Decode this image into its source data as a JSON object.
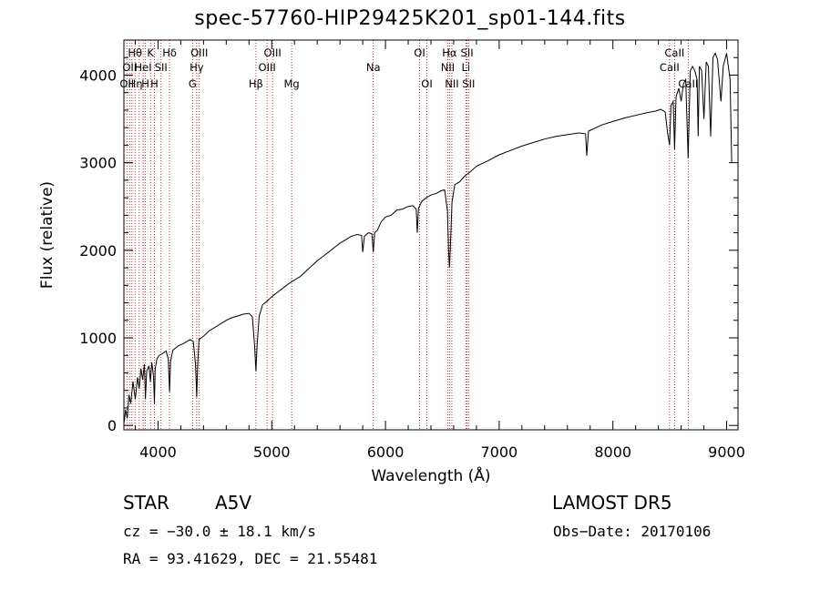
{
  "chart_data": {
    "type": "line",
    "title": "spec-57760-HIP29425K201_sp01-144.fits",
    "xlabel": "Wavelength (Å)",
    "ylabel": "Flux (relative)",
    "xlim": [
      3700,
      9100
    ],
    "ylim": [
      -50,
      4400
    ],
    "x_ticks": [
      4000,
      5000,
      6000,
      7000,
      8000,
      9000
    ],
    "y_ticks": [
      0,
      1000,
      2000,
      3000,
      4000
    ],
    "grid": false,
    "series": [
      {
        "points": [
          [
            3700,
            20
          ],
          [
            3715,
            180
          ],
          [
            3730,
            80
          ],
          [
            3745,
            350
          ],
          [
            3760,
            250
          ],
          [
            3780,
            500
          ],
          [
            3800,
            300
          ],
          [
            3820,
            550
          ],
          [
            3835,
            420
          ],
          [
            3850,
            650
          ],
          [
            3865,
            520
          ],
          [
            3880,
            700
          ],
          [
            3889,
            300
          ],
          [
            3900,
            620
          ],
          [
            3920,
            680
          ],
          [
            3933,
            500
          ],
          [
            3945,
            720
          ],
          [
            3960,
            560
          ],
          [
            3968,
            250
          ],
          [
            3975,
            640
          ],
          [
            3990,
            760
          ],
          [
            4010,
            800
          ],
          [
            4040,
            820
          ],
          [
            4070,
            850
          ],
          [
            4090,
            760
          ],
          [
            4101,
            380
          ],
          [
            4110,
            730
          ],
          [
            4130,
            860
          ],
          [
            4180,
            910
          ],
          [
            4230,
            940
          ],
          [
            4280,
            980
          ],
          [
            4310,
            960
          ],
          [
            4330,
            700
          ],
          [
            4340,
            320
          ],
          [
            4348,
            680
          ],
          [
            4360,
            980
          ],
          [
            4400,
            1020
          ],
          [
            4450,
            1080
          ],
          [
            4500,
            1120
          ],
          [
            4550,
            1160
          ],
          [
            4600,
            1200
          ],
          [
            4650,
            1230
          ],
          [
            4700,
            1250
          ],
          [
            4750,
            1270
          ],
          [
            4800,
            1280
          ],
          [
            4830,
            1240
          ],
          [
            4850,
            900
          ],
          [
            4861,
            620
          ],
          [
            4872,
            940
          ],
          [
            4890,
            1250
          ],
          [
            4920,
            1380
          ],
          [
            4960,
            1420
          ],
          [
            5000,
            1470
          ],
          [
            5050,
            1520
          ],
          [
            5100,
            1570
          ],
          [
            5150,
            1620
          ],
          [
            5200,
            1660
          ],
          [
            5250,
            1700
          ],
          [
            5300,
            1760
          ],
          [
            5350,
            1820
          ],
          [
            5400,
            1880
          ],
          [
            5450,
            1930
          ],
          [
            5500,
            1980
          ],
          [
            5550,
            2030
          ],
          [
            5600,
            2080
          ],
          [
            5650,
            2120
          ],
          [
            5700,
            2160
          ],
          [
            5750,
            2180
          ],
          [
            5790,
            2170
          ],
          [
            5800,
            1980
          ],
          [
            5815,
            2160
          ],
          [
            5850,
            2200
          ],
          [
            5880,
            2190
          ],
          [
            5893,
            1980
          ],
          [
            5905,
            2200
          ],
          [
            5930,
            2230
          ],
          [
            5960,
            2320
          ],
          [
            6000,
            2380
          ],
          [
            6050,
            2400
          ],
          [
            6100,
            2460
          ],
          [
            6150,
            2470
          ],
          [
            6200,
            2500
          ],
          [
            6240,
            2510
          ],
          [
            6270,
            2470
          ],
          [
            6280,
            2200
          ],
          [
            6290,
            2480
          ],
          [
            6320,
            2560
          ],
          [
            6360,
            2600
          ],
          [
            6400,
            2630
          ],
          [
            6450,
            2650
          ],
          [
            6490,
            2680
          ],
          [
            6520,
            2690
          ],
          [
            6545,
            2450
          ],
          [
            6556,
            1950
          ],
          [
            6563,
            1800
          ],
          [
            6570,
            2000
          ],
          [
            6585,
            2550
          ],
          [
            6610,
            2750
          ],
          [
            6650,
            2780
          ],
          [
            6700,
            2850
          ],
          [
            6750,
            2900
          ],
          [
            6800,
            2960
          ],
          [
            6900,
            3020
          ],
          [
            7000,
            3090
          ],
          [
            7100,
            3140
          ],
          [
            7200,
            3190
          ],
          [
            7300,
            3230
          ],
          [
            7400,
            3270
          ],
          [
            7500,
            3300
          ],
          [
            7600,
            3320
          ],
          [
            7700,
            3340
          ],
          [
            7760,
            3330
          ],
          [
            7770,
            3080
          ],
          [
            7785,
            3360
          ],
          [
            7850,
            3400
          ],
          [
            7900,
            3430
          ],
          [
            8000,
            3470
          ],
          [
            8100,
            3510
          ],
          [
            8200,
            3540
          ],
          [
            8300,
            3570
          ],
          [
            8380,
            3590
          ],
          [
            8420,
            3610
          ],
          [
            8460,
            3580
          ],
          [
            8480,
            3350
          ],
          [
            8498,
            3200
          ],
          [
            8510,
            3650
          ],
          [
            8530,
            3700
          ],
          [
            8542,
            3150
          ],
          [
            8555,
            3750
          ],
          [
            8580,
            3850
          ],
          [
            8600,
            3700
          ],
          [
            8620,
            3900
          ],
          [
            8640,
            3950
          ],
          [
            8662,
            3050
          ],
          [
            8680,
            4050
          ],
          [
            8700,
            4100
          ],
          [
            8720,
            4050
          ],
          [
            8740,
            3950
          ],
          [
            8750,
            3300
          ],
          [
            8760,
            4100
          ],
          [
            8780,
            4050
          ],
          [
            8800,
            3500
          ],
          [
            8820,
            4150
          ],
          [
            8840,
            4100
          ],
          [
            8860,
            3300
          ],
          [
            8880,
            4200
          ],
          [
            8900,
            4250
          ],
          [
            8920,
            4180
          ],
          [
            8950,
            3700
          ],
          [
            8970,
            4100
          ],
          [
            9000,
            4250
          ],
          [
            9030,
            3950
          ],
          [
            9045,
            3000
          ]
        ]
      }
    ],
    "lines": [
      {
        "wl": 3726,
        "label": "OII",
        "row": 3
      },
      {
        "wl": 3750,
        "label": "OII",
        "row": 2
      },
      {
        "wl": 3771,
        "label": "H",
        "row": 3
      },
      {
        "wl": 3798,
        "label": "Hθ",
        "row": 1
      },
      {
        "wl": 3835,
        "label": "η",
        "row": 3
      },
      {
        "wl": 3869,
        "label": "HeI",
        "row": 2
      },
      {
        "wl": 3889,
        "label": "H",
        "row": 3
      },
      {
        "wl": 3934,
        "label": "K",
        "row": 1
      },
      {
        "wl": 3968,
        "label": "H",
        "row": 3
      },
      {
        "wl": 4026,
        "label": "SII",
        "row": 2
      },
      {
        "wl": 4101,
        "label": "Hδ",
        "row": 1
      },
      {
        "wl": 4304,
        "label": "G",
        "row": 3
      },
      {
        "wl": 4340,
        "label": "Hγ",
        "row": 2
      },
      {
        "wl": 4363,
        "label": "OIII",
        "row": 1
      },
      {
        "wl": 4861,
        "label": "Hβ",
        "row": 3
      },
      {
        "wl": 4959,
        "label": "OIII",
        "row": 2
      },
      {
        "wl": 5007,
        "label": "OIII",
        "row": 1
      },
      {
        "wl": 5175,
        "label": "Mg",
        "row": 3
      },
      {
        "wl": 5893,
        "label": "Na",
        "row": 2
      },
      {
        "wl": 6300,
        "label": "OI",
        "row": 1
      },
      {
        "wl": 6364,
        "label": "OI",
        "row": 3
      },
      {
        "wl": 6548,
        "label": "NII",
        "row": 2
      },
      {
        "wl": 6563,
        "label": "Hα",
        "row": 1
      },
      {
        "wl": 6584,
        "label": "NII",
        "row": 3
      },
      {
        "wl": 6707,
        "label": "Li",
        "row": 2
      },
      {
        "wl": 6717,
        "label": "SII",
        "row": 1
      },
      {
        "wl": 6731,
        "label": "SII",
        "row": 3
      },
      {
        "wl": 8498,
        "label": "CaII",
        "row": 2
      },
      {
        "wl": 8542,
        "label": "CaII",
        "row": 1
      },
      {
        "wl": 8662,
        "label": "CaII",
        "row": 3
      }
    ]
  },
  "info": {
    "class_label": "STAR",
    "subclass": "A5V",
    "survey": "LAMOST DR5",
    "cz_text": "cz = −30.0 ± 18.1 km/s",
    "obs_date": "Obs−Date: 20170106",
    "coords": "RA =  93.41629, DEC =  21.55481"
  }
}
